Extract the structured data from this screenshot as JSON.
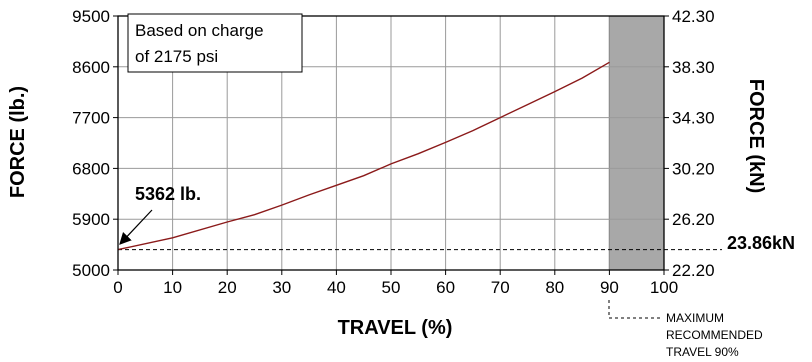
{
  "chart_data": {
    "type": "line",
    "xlabel": "TRAVEL (%)",
    "ylabel_left": "FORCE (lb.)",
    "ylabel_right": "FORCE (kN)",
    "xlim": [
      0,
      100
    ],
    "ylim": [
      5000,
      9500
    ],
    "x_ticks": [
      "0",
      "10",
      "20",
      "30",
      "40",
      "50",
      "60",
      "70",
      "80",
      "90",
      "100"
    ],
    "y_ticks_left": [
      "5000",
      "5900",
      "6800",
      "7700",
      "8600",
      "9500"
    ],
    "y_ticks_right": [
      "22.20",
      "26.20",
      "30.20",
      "34.30",
      "38.30",
      "42.30"
    ],
    "grid": true,
    "series": [
      {
        "x": [
          0,
          10,
          20,
          25,
          30,
          35,
          40,
          45,
          50,
          55,
          60,
          65,
          70,
          75,
          80,
          85,
          90
        ],
        "y": [
          5362,
          5570,
          5850,
          5980,
          6150,
          6330,
          6500,
          6670,
          6880,
          7060,
          7260,
          7470,
          7700,
          7930,
          8160,
          8400,
          8680
        ],
        "color": "#8b1a1a"
      }
    ],
    "reference_line": {
      "y": 5362,
      "label": "23.86kN"
    },
    "start_annotation": {
      "x": 0,
      "y": 5362,
      "label": "5362 lb."
    },
    "shaded_region": {
      "x": [
        90,
        100
      ],
      "color": "#a8a8a8"
    },
    "note_lines": [
      "Based on charge",
      "of 2175 psi"
    ],
    "max_label_lines": [
      "MAXIMUM",
      "RECOMMENDED",
      "TRAVEL 90%"
    ]
  }
}
